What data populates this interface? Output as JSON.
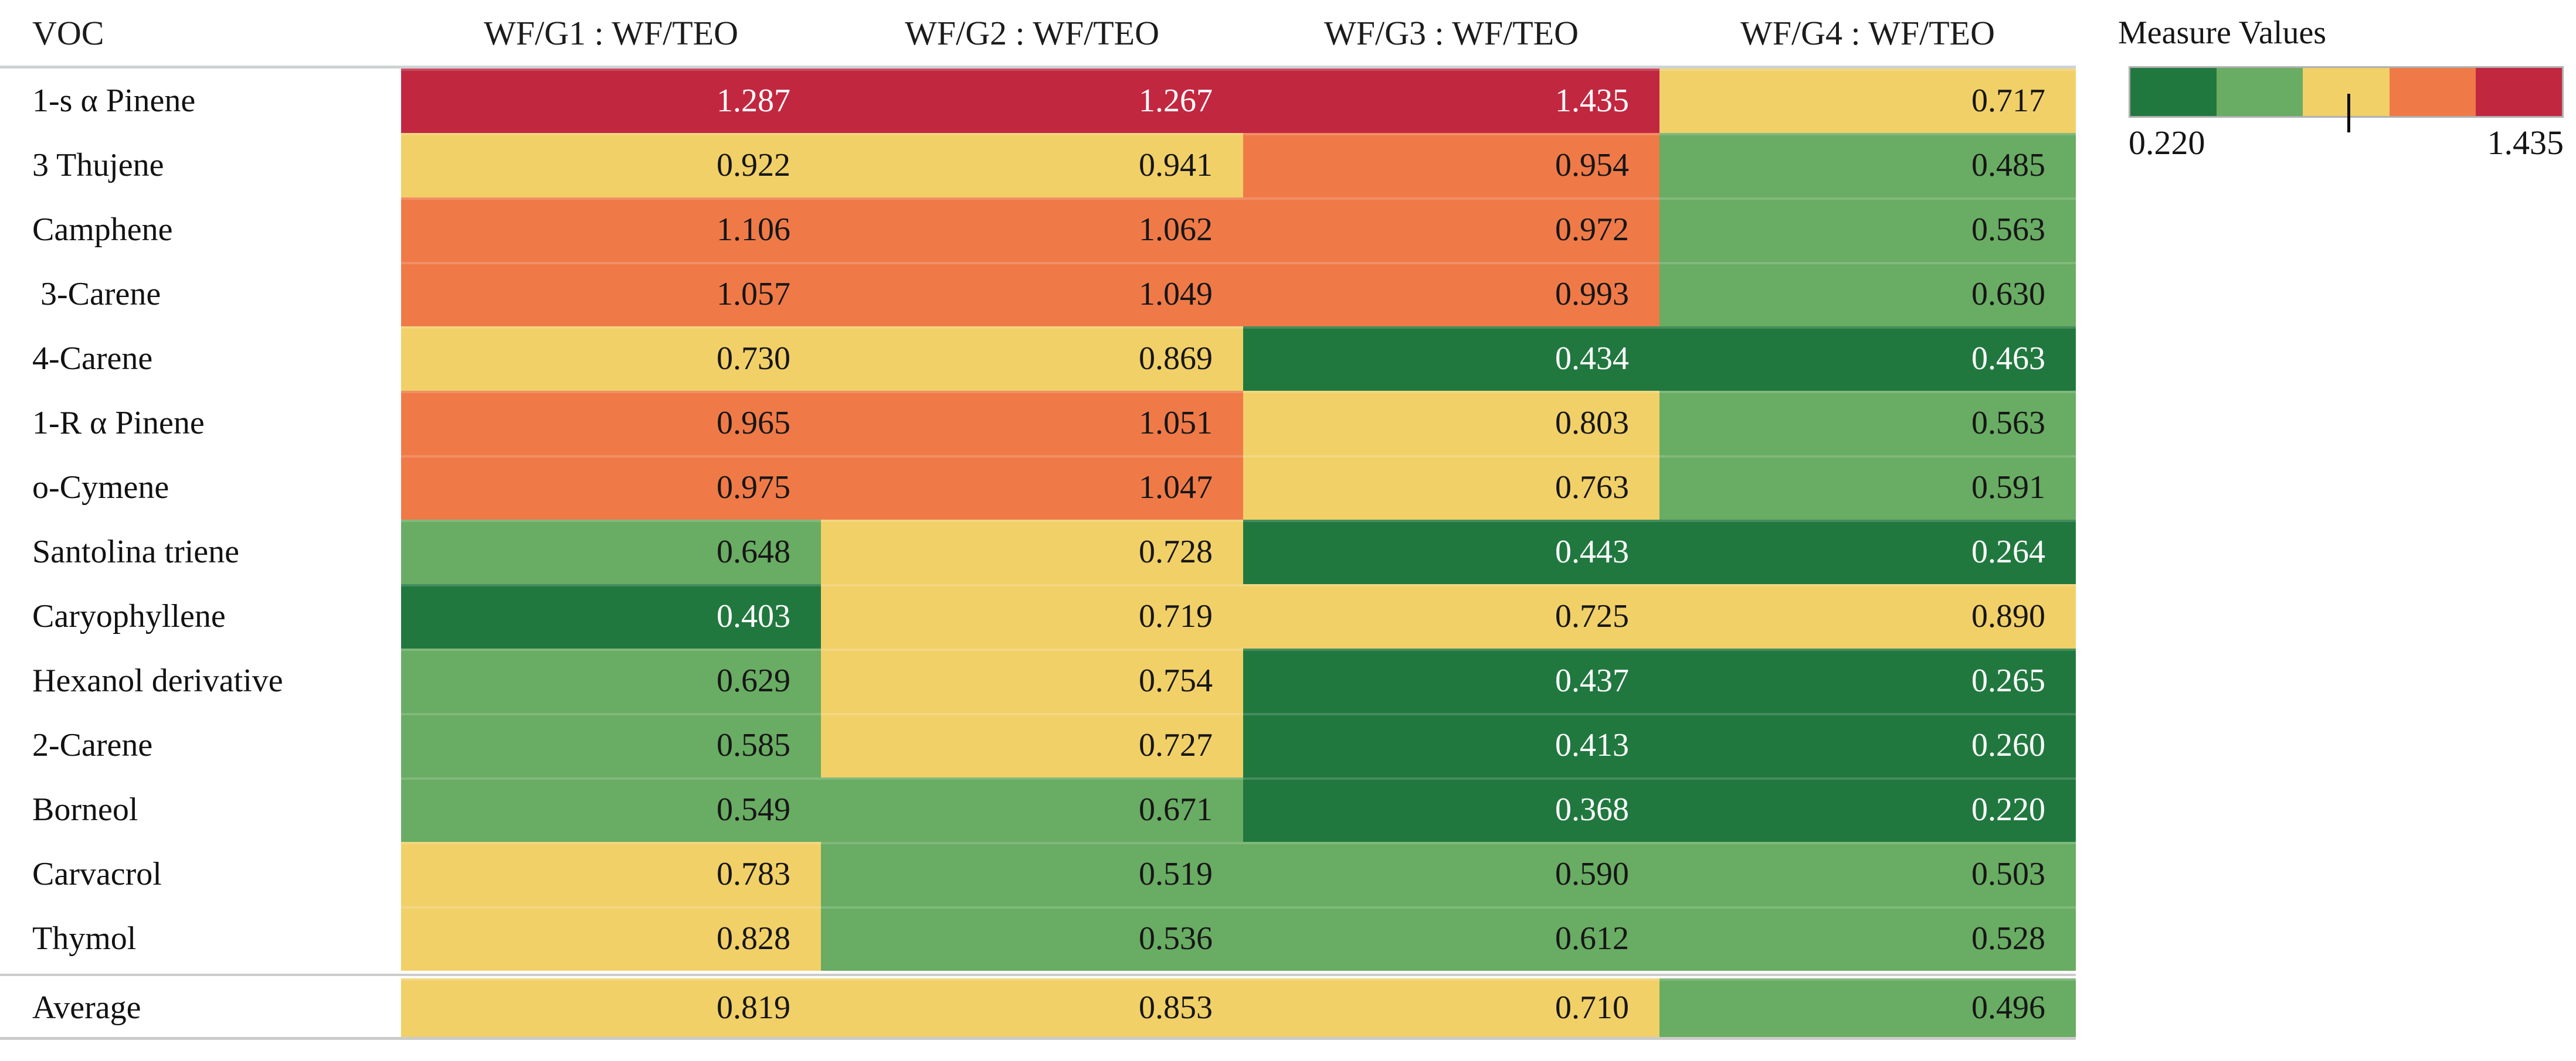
{
  "chart_data": {
    "type": "heatmap",
    "row_header": "VOC",
    "columns": [
      "WF/G1 : WF/TEO",
      "WF/G2 : WF/TEO",
      "WF/G3 : WF/TEO",
      "WF/G4 : WF/TEO"
    ],
    "rows": [
      {
        "voc": "1-s α Pinene",
        "values": [
          "1.287",
          "1.267",
          "1.435",
          "0.717"
        ]
      },
      {
        "voc": "3 Thujene",
        "values": [
          "0.922",
          "0.941",
          "0.954",
          "0.485"
        ]
      },
      {
        "voc": "Camphene",
        "values": [
          "1.106",
          "1.062",
          "0.972",
          "0.563"
        ]
      },
      {
        "voc": " 3-Carene",
        "values": [
          "1.057",
          "1.049",
          "0.993",
          "0.630"
        ]
      },
      {
        "voc": "4-Carene",
        "values": [
          "0.730",
          "0.869",
          "0.434",
          "0.463"
        ]
      },
      {
        "voc": "1-R α Pinene",
        "values": [
          "0.965",
          "1.051",
          "0.803",
          "0.563"
        ]
      },
      {
        "voc": "o-Cymene",
        "values": [
          "0.975",
          "1.047",
          "0.763",
          "0.591"
        ]
      },
      {
        "voc": "Santolina triene",
        "values": [
          "0.648",
          "0.728",
          "0.443",
          "0.264"
        ]
      },
      {
        "voc": "Caryophyllene",
        "values": [
          "0.403",
          "0.719",
          "0.725",
          "0.890"
        ]
      },
      {
        "voc": "Hexanol derivative",
        "values": [
          "0.629",
          "0.754",
          "0.437",
          "0.265"
        ]
      },
      {
        "voc": "2-Carene",
        "values": [
          "0.585",
          "0.727",
          "0.413",
          "0.260"
        ]
      },
      {
        "voc": "Borneol",
        "values": [
          "0.549",
          "0.671",
          "0.368",
          "0.220"
        ]
      },
      {
        "voc": "Carvacrol",
        "values": [
          "0.783",
          "0.519",
          "0.590",
          "0.503"
        ]
      },
      {
        "voc": "Thymol",
        "values": [
          "0.828",
          "0.536",
          "0.612",
          "0.528"
        ]
      }
    ],
    "average_row": {
      "voc": "Average",
      "values": [
        "0.819",
        "0.853",
        "0.710",
        "0.496"
      ]
    },
    "legend": {
      "title": "Measure Values",
      "min_label": "0.220",
      "max_label": "1.435",
      "tick_fraction": 0.505
    },
    "palette": {
      "thresholds": [
        0.47,
        0.69,
        0.95,
        1.19
      ],
      "colors": [
        "#21783f",
        "#69ac63",
        "#f1d068",
        "#ef7a48",
        "#c22740"
      ],
      "text_colors": [
        "#ffffff",
        "#161616",
        "#161616",
        "#161616",
        "#ffffff"
      ]
    },
    "value_range": [
      0.22,
      1.435
    ],
    "grid": false,
    "legend_position": "top-right"
  }
}
